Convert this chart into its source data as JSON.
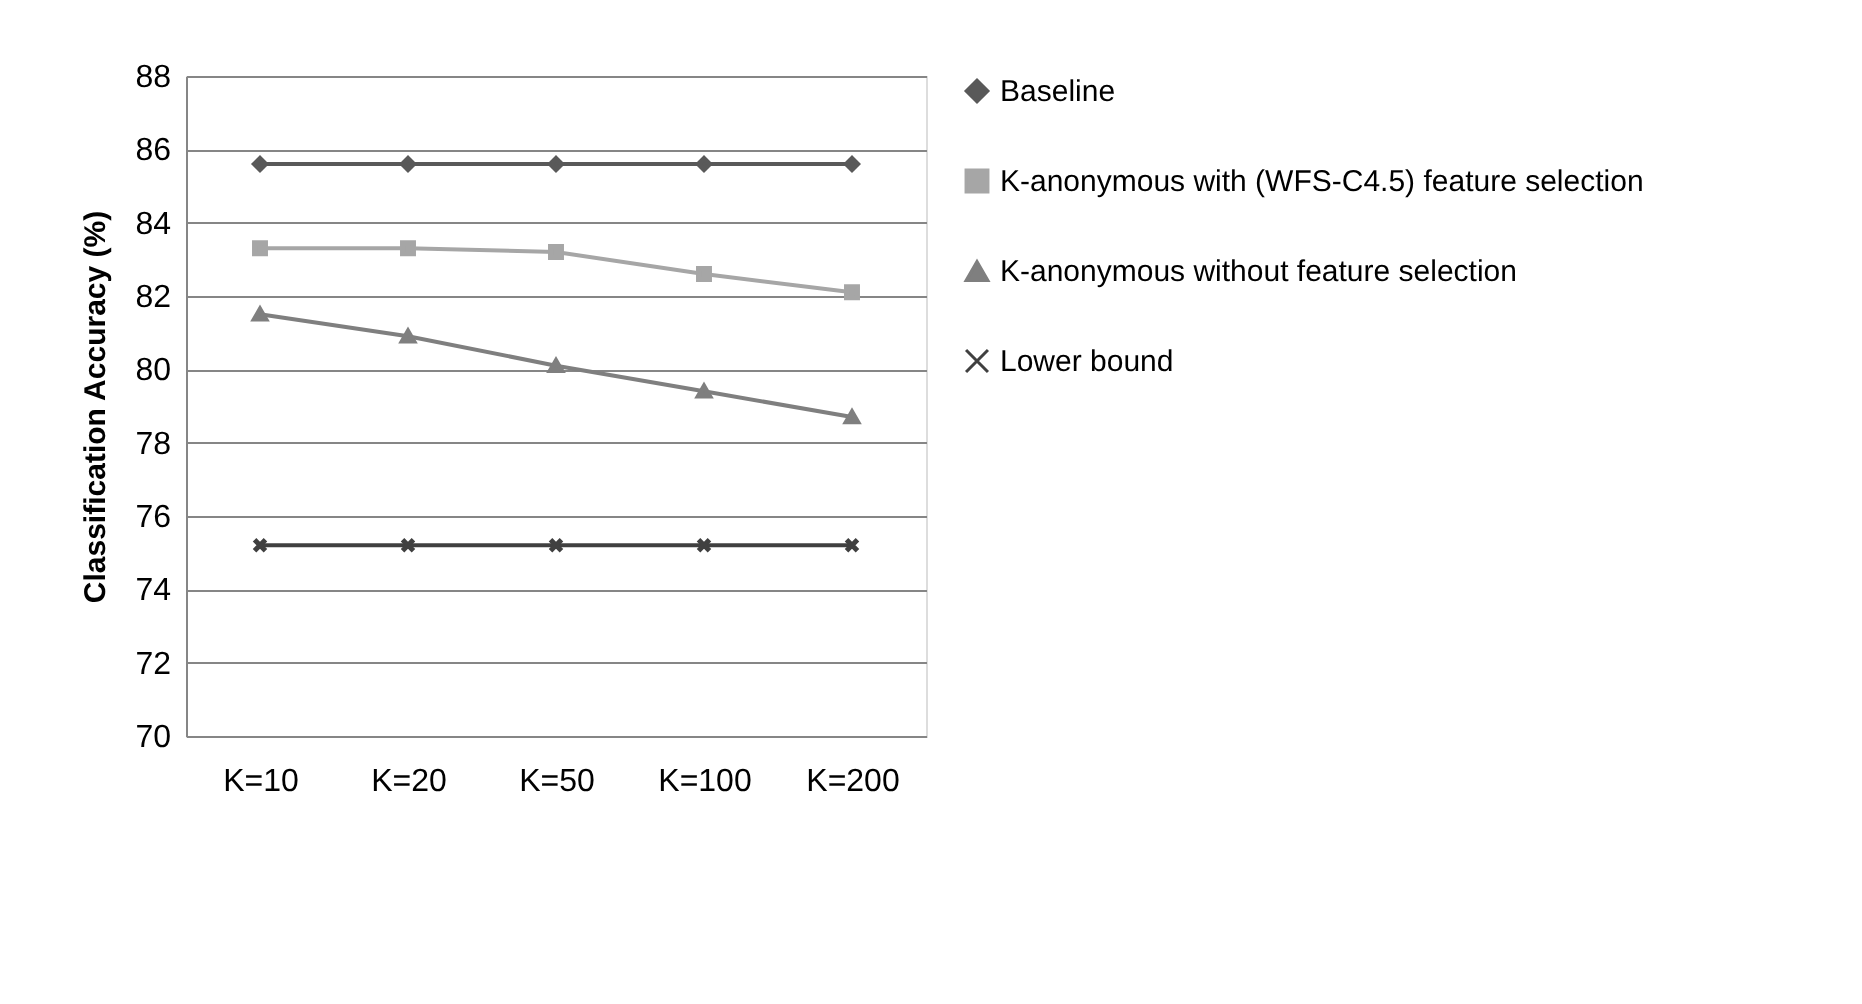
{
  "chart_data": {
    "type": "line",
    "ylabel": "Classification Accuracy (%)",
    "categories": [
      "K=10",
      "K=20",
      "K=50",
      "K=100",
      "K=200"
    ],
    "ylim": [
      70,
      88
    ],
    "yticks": [
      70,
      72,
      74,
      76,
      78,
      80,
      82,
      84,
      86,
      88
    ],
    "grid": "y",
    "legend": "right",
    "series": [
      {
        "name": "Baseline",
        "color": "#595959",
        "marker": "diamond",
        "values": [
          85.6,
          85.6,
          85.6,
          85.6,
          85.6
        ]
      },
      {
        "name": "K-anonymous with (WFS-C4.5) feature selection",
        "color": "#a6a6a6",
        "marker": "square",
        "values": [
          83.3,
          83.3,
          83.2,
          82.6,
          82.1
        ]
      },
      {
        "name": "K-anonymous without feature selection",
        "color": "#7f7f7f",
        "marker": "triangle",
        "values": [
          81.5,
          80.9,
          80.1,
          79.4,
          78.7
        ]
      },
      {
        "name": "Lower bound",
        "color": "#404040",
        "marker": "cross",
        "values": [
          75.2,
          75.2,
          75.2,
          75.2,
          75.2
        ]
      }
    ]
  }
}
